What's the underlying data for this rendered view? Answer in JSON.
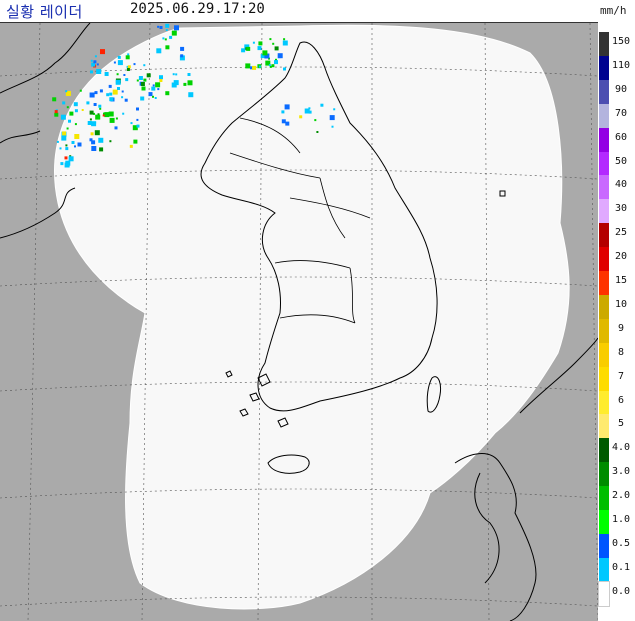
{
  "header": {
    "title": "실황 레이더",
    "timestamp": "2025.06.29.17:20",
    "unit": "mm/h"
  },
  "map": {
    "colors": {
      "outside": "#aaaaaa",
      "coverage": "#f8f8f8",
      "coast": "#000000",
      "grid": "#555555"
    },
    "echo_palette": [
      "#00c8ff",
      "#0a6bff",
      "#00d200",
      "#008c00",
      "#f5e600",
      "#ff2200"
    ]
  },
  "legend": {
    "items": [
      {
        "label": "150",
        "color": "#333333"
      },
      {
        "label": "110",
        "color": "#000390"
      },
      {
        "label": "90",
        "color": "#4c4eb1"
      },
      {
        "label": "70",
        "color": "#b3b4de"
      },
      {
        "label": "60",
        "color": "#9300e4"
      },
      {
        "label": "50",
        "color": "#b329ff"
      },
      {
        "label": "40",
        "color": "#c969ff"
      },
      {
        "label": "30",
        "color": "#e0a9ff"
      },
      {
        "label": "25",
        "color": "#b40000"
      },
      {
        "label": "20",
        "color": "#e00000"
      },
      {
        "label": "15",
        "color": "#fe3300"
      },
      {
        "label": "10",
        "color": "#ccaa00"
      },
      {
        "label": "9",
        "color": "#e0b900"
      },
      {
        "label": "8",
        "color": "#f9cd00"
      },
      {
        "label": "7",
        "color": "#fedc00"
      },
      {
        "label": "6",
        "color": "#ffec2e"
      },
      {
        "label": "5",
        "color": "#ffea6e"
      },
      {
        "label": "4.0",
        "color": "#005a00"
      },
      {
        "label": "3.0",
        "color": "#008c00"
      },
      {
        "label": "2.0",
        "color": "#00be00"
      },
      {
        "label": "1.0",
        "color": "#00ff00"
      },
      {
        "label": "0.5",
        "color": "#0055ff"
      },
      {
        "label": "0.1",
        "color": "#00c8ff"
      },
      {
        "label": "0.0",
        "color": "#ffffff"
      }
    ]
  }
}
